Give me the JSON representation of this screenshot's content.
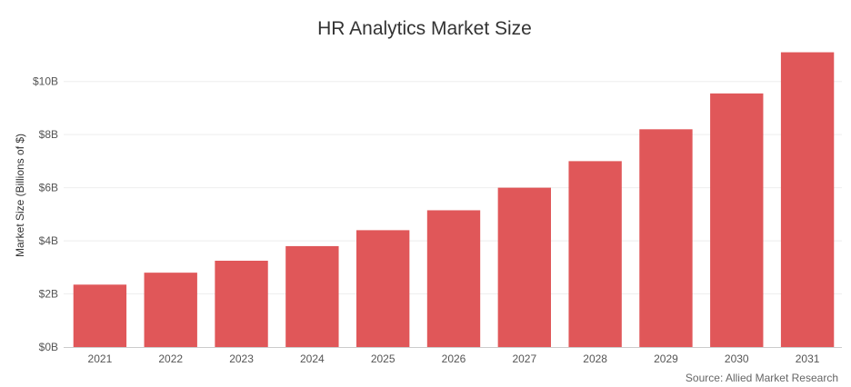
{
  "chart_data": {
    "type": "bar",
    "title": "HR Analytics Market Size",
    "xlabel": "",
    "ylabel": "Market Size (Billions of $)",
    "categories": [
      "2021",
      "2022",
      "2023",
      "2024",
      "2025",
      "2026",
      "2027",
      "2028",
      "2029",
      "2030",
      "2031"
    ],
    "values": [
      2.35,
      2.8,
      3.25,
      3.8,
      4.4,
      5.15,
      6.0,
      7.0,
      8.2,
      9.55,
      11.1
    ],
    "ylim": [
      0,
      11.7
    ],
    "yticks": [
      0,
      2,
      4,
      6,
      8,
      10
    ],
    "ytick_labels": [
      "$0B",
      "$2B",
      "$4B",
      "$6B",
      "$8B",
      "$10B"
    ],
    "grid": true,
    "bar_color": "#e05759",
    "source": "Source: Allied Market Research"
  }
}
